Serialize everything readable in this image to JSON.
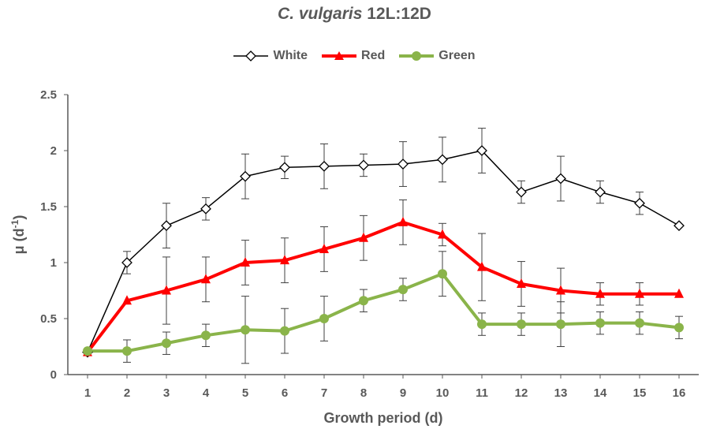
{
  "chart_data": {
    "type": "line",
    "title_italic": "C. vulgaris",
    "title_rest": " 12L:12D",
    "xlabel": "Growth period (d)",
    "ylabel": "μ (d",
    "ylabel_sup": "-1",
    "ylabel_end": ")",
    "ylim": [
      0,
      2.5
    ],
    "yticks": [
      "0",
      "0.5",
      "1",
      "1.5",
      "2",
      "2.5"
    ],
    "x": [
      1,
      2,
      3,
      4,
      5,
      6,
      7,
      8,
      9,
      10,
      11,
      12,
      13,
      14,
      15,
      16
    ],
    "legend_position": "top-center",
    "grid": false,
    "series": [
      {
        "name": "White",
        "color": "#000000",
        "marker": "diamond",
        "values": [
          0.2,
          1.0,
          1.33,
          1.48,
          1.77,
          1.85,
          1.86,
          1.87,
          1.88,
          1.92,
          2.0,
          1.63,
          1.75,
          1.63,
          1.53,
          1.33
        ],
        "errors": [
          0.0,
          0.1,
          0.2,
          0.1,
          0.2,
          0.1,
          0.2,
          0.1,
          0.2,
          0.2,
          0.2,
          0.1,
          0.2,
          0.1,
          0.1,
          0.0
        ]
      },
      {
        "name": "Red",
        "color": "#ff0000",
        "marker": "triangle",
        "values": [
          0.2,
          0.66,
          0.75,
          0.85,
          1.0,
          1.02,
          1.12,
          1.22,
          1.36,
          1.25,
          0.96,
          0.81,
          0.75,
          0.72,
          0.72,
          0.72
        ],
        "errors": [
          0.0,
          0.0,
          0.3,
          0.2,
          0.2,
          0.2,
          0.2,
          0.2,
          0.2,
          0.1,
          0.3,
          0.2,
          0.2,
          0.1,
          0.1,
          0.0
        ]
      },
      {
        "name": "Green",
        "color": "#8ab44a",
        "marker": "circle",
        "values": [
          0.21,
          0.21,
          0.28,
          0.35,
          0.4,
          0.39,
          0.5,
          0.66,
          0.76,
          0.9,
          0.45,
          0.45,
          0.45,
          0.46,
          0.46,
          0.42
        ],
        "errors": [
          0.0,
          0.1,
          0.1,
          0.1,
          0.3,
          0.2,
          0.2,
          0.1,
          0.1,
          0.2,
          0.1,
          0.1,
          0.2,
          0.1,
          0.1,
          0.1
        ]
      }
    ]
  }
}
